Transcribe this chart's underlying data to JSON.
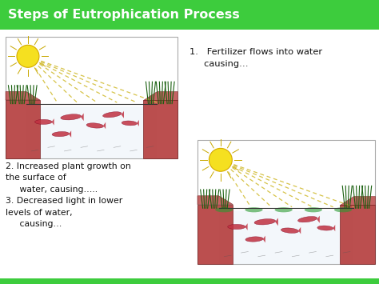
{
  "title": "Steps of Eutrophication Process",
  "title_bg": "#3dcc3d",
  "title_color": "#ffffff",
  "slide_bg": "#e8e8e8",
  "content_bg": "#ffffff",
  "text1": "1.   Fertilizer flows into water\n     causing…",
  "text2": "2. Increased plant growth on\nthe surface of\n     water, causing…..\n3. Decreased light in lower\nlevels of water,\n     causing…",
  "bottom_bar_color": "#3dcc3d",
  "text_color": "#111111",
  "scene_border": "#aaaaaa",
  "sun_color": "#f5e020",
  "sun_edge": "#d4aa00",
  "ray_color": "#d4c040",
  "shore_color": "#b03030",
  "fish_color": "#c03040",
  "water_color": "#e8f0f8",
  "veg_color": "#1a6010",
  "line_color": "#333333"
}
